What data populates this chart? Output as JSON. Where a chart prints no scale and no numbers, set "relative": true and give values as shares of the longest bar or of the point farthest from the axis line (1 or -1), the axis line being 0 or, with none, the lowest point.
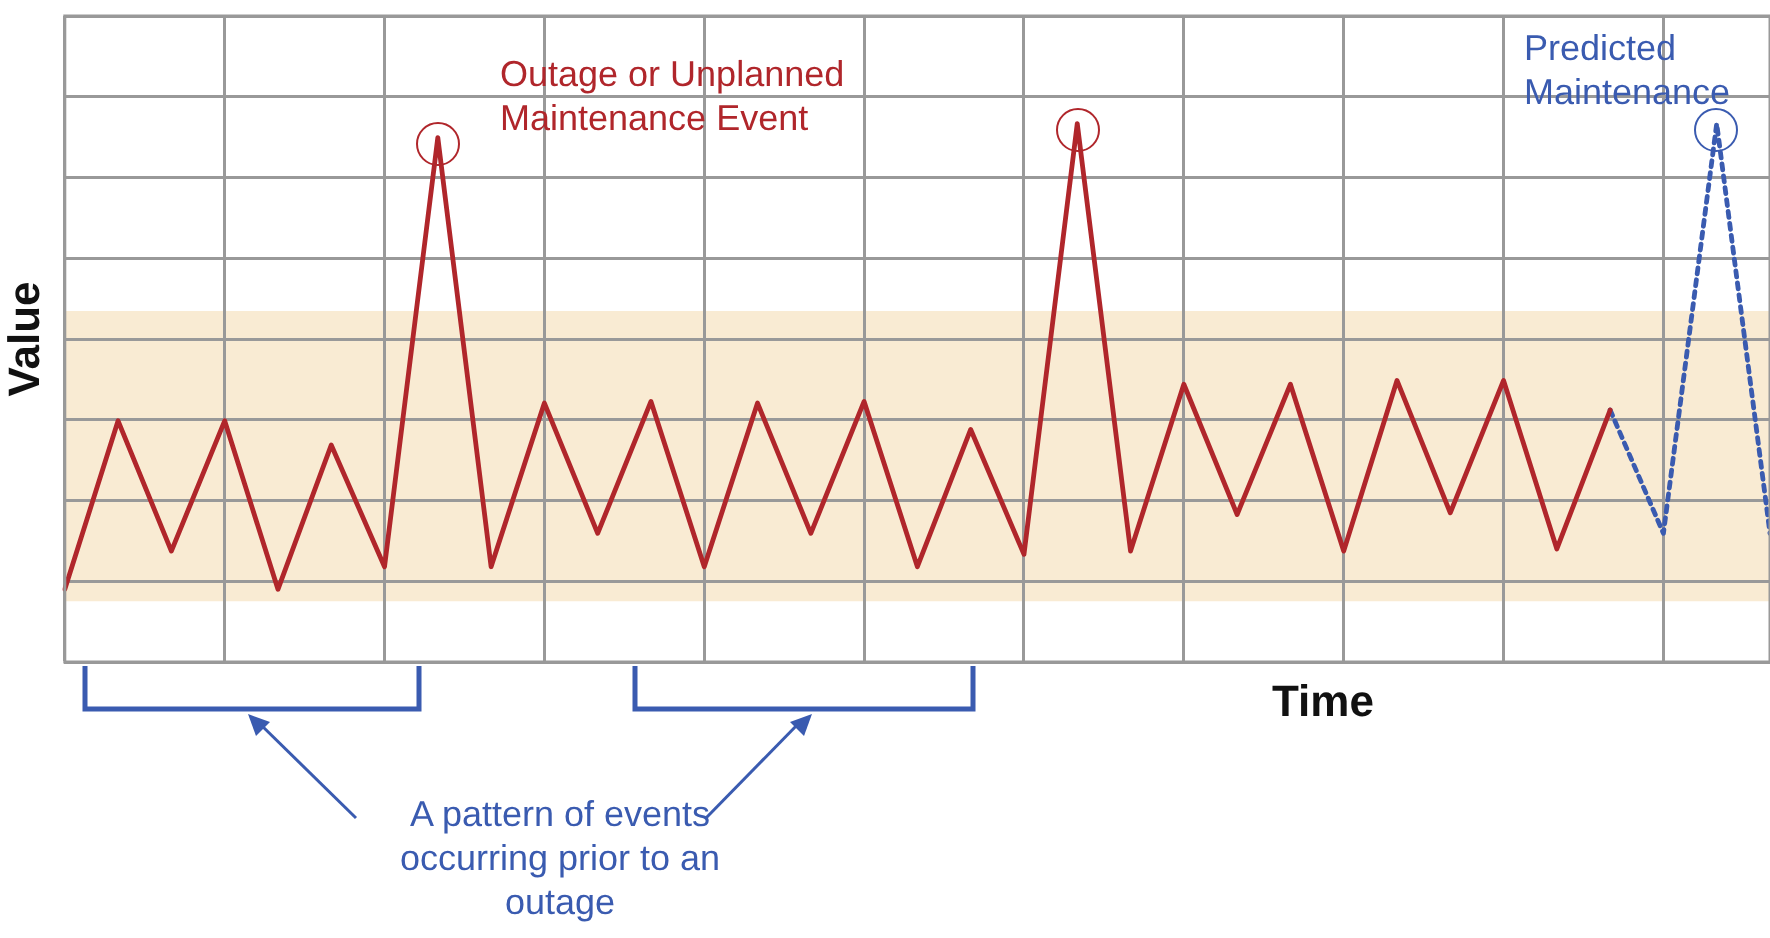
{
  "chart_data": {
    "type": "line",
    "relative": true,
    "xlabel": "Time",
    "ylabel": "Value",
    "grid": true,
    "legend": false,
    "categories": [
      null,
      null,
      null,
      null,
      null,
      null,
      null,
      null,
      null,
      null,
      null,
      null,
      null,
      null,
      null,
      null,
      null,
      null,
      null,
      null,
      null,
      null,
      null,
      null,
      null,
      null,
      null,
      null,
      null,
      null,
      null,
      null,
      null
    ],
    "series": [
      {
        "color": "#b0262b",
        "line_style": "solid",
        "values": [
          0.135,
          0.448,
          0.206,
          0.448,
          0.135,
          0.403,
          0.177,
          0.974,
          0.177,
          0.481,
          0.239,
          0.484,
          0.177,
          0.481,
          0.239,
          0.484,
          0.177,
          0.432,
          0.2,
          1,
          0.206,
          0.516,
          0.274,
          0.516,
          0.206,
          0.523,
          0.277,
          0.523,
          0.21,
          0.468,
          null,
          null,
          null
        ]
      },
      {
        "color": "#3a5bb0",
        "line_style": "dotted",
        "values": [
          null,
          null,
          null,
          null,
          null,
          null,
          null,
          null,
          null,
          null,
          null,
          null,
          null,
          null,
          null,
          null,
          null,
          null,
          null,
          null,
          null,
          null,
          null,
          null,
          null,
          null,
          null,
          null,
          null,
          0.468,
          0.239,
          1,
          0.239
        ]
      }
    ],
    "bands": [
      {
        "axis": "y",
        "from": 0.113,
        "to": 0.652,
        "color": "#f9ebd3"
      }
    ],
    "annotations": [
      "Outage or Unplanned Maintenance Event",
      "Predicted Maintenance",
      "A pattern of events occurring prior to an outage"
    ]
  }
}
